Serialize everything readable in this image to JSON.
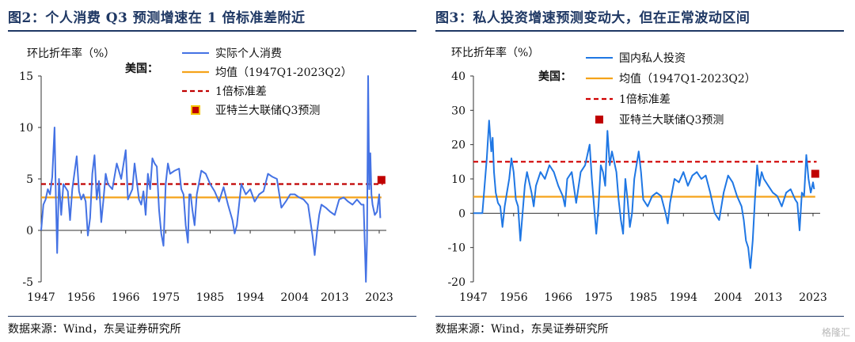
{
  "watermark": "格隆汇",
  "chart_data": [
    {
      "type": "line",
      "title": "图2：个人消费 Q3 预测增速在 1 倍标准差附近",
      "source": "数据来源：Wind，东吴证券研究所",
      "ylabel": "环比折年率（%）",
      "region_label": "美国：",
      "ylim": [
        -5,
        15
      ],
      "yticks": [
        -5,
        0,
        5,
        10,
        15
      ],
      "xlim": [
        1947,
        2024.6
      ],
      "xticks": [
        1947,
        1956,
        1966,
        1975,
        1985,
        1994,
        2004,
        2013,
        2023
      ],
      "grid": false,
      "legend_position": "top-right",
      "colors": {
        "series": "#4472e4",
        "mean": "#f5a31a",
        "std": "#c00000",
        "forecast": "#c00000"
      },
      "legend": {
        "series": "实际个人消费",
        "mean": "均值（1947Q1-2023Q2）",
        "std": "1倍标准差",
        "forecast": "亚特兰大联储Q3预测"
      },
      "mean_value": 3.2,
      "std_value": 4.5,
      "forecast": {
        "x": 2023.5,
        "y": 4.9
      },
      "series": [
        {
          "x": [
            1947,
            1947.5,
            1948,
            1948.5,
            1949,
            1949.5,
            1950,
            1950.3,
            1950.6,
            1951,
            1951.5,
            1952,
            1953,
            1953.5,
            1954,
            1955,
            1955.5,
            1956,
            1956.5,
            1957,
            1957.5,
            1958,
            1958.5,
            1959,
            1959.5,
            1960,
            1960.5,
            1961,
            1961.5,
            1962,
            1963,
            1964,
            1965,
            1966,
            1966.5,
            1967,
            1967.5,
            1968,
            1969,
            1969.5,
            1970,
            1970.5,
            1971,
            1971.5,
            1972,
            1972.5,
            1973,
            1973.5,
            1974,
            1974.5,
            1975,
            1975.5,
            1976,
            1977,
            1978,
            1978.5,
            1979,
            1979.5,
            1980,
            1980.3,
            1980.6,
            1981,
            1981.5,
            1982,
            1983,
            1984,
            1985,
            1986,
            1987,
            1988,
            1989,
            1990,
            1990.5,
            1991,
            1992,
            1993,
            1994,
            1995,
            1996,
            1997,
            1998,
            1999,
            2000,
            2001,
            2002,
            2003,
            2004,
            2005,
            2006,
            2007,
            2008,
            2008.5,
            2009,
            2009.5,
            2010,
            2011,
            2012,
            2013,
            2014,
            2015,
            2016,
            2017,
            2018,
            2019,
            2019.5,
            2020,
            2020.25,
            2020.5,
            2020.75,
            2021,
            2021.25,
            2021.5,
            2022,
            2022.5,
            2023,
            2023.25
          ],
          "y": [
            0.0,
            2.5,
            3.0,
            4.0,
            3.5,
            5.2,
            10.0,
            3.5,
            -2.2,
            5.0,
            1.5,
            4.5,
            3.8,
            1.0,
            4.0,
            7.2,
            3.8,
            3.0,
            3.5,
            2.8,
            -0.5,
            1.2,
            5.5,
            7.3,
            3.0,
            4.8,
            0.8,
            3.0,
            5.5,
            4.5,
            4.0,
            6.5,
            5.0,
            7.8,
            3.0,
            3.5,
            4.0,
            6.5,
            3.0,
            2.5,
            3.8,
            1.5,
            5.5,
            4.0,
            7.0,
            6.5,
            6.2,
            2.0,
            -0.3,
            -1.5,
            4.5,
            6.5,
            5.5,
            5.8,
            6.0,
            4.0,
            3.5,
            0.5,
            -1.2,
            3.5,
            3.5,
            2.0,
            0.5,
            3.5,
            5.8,
            5.5,
            4.5,
            3.8,
            2.8,
            4.2,
            2.5,
            1.0,
            -0.3,
            0.5,
            4.5,
            3.5,
            4.0,
            2.8,
            3.5,
            3.8,
            5.5,
            5.2,
            5.0,
            2.2,
            2.8,
            3.5,
            3.5,
            3.2,
            3.0,
            2.5,
            -0.5,
            -2.4,
            -0.2,
            1.5,
            2.5,
            2.2,
            1.8,
            1.5,
            3.0,
            3.2,
            2.8,
            2.5,
            3.0,
            2.5,
            2.5,
            -5.0,
            -1.0,
            15.0,
            4.0,
            7.5,
            3.5,
            2.5,
            1.5,
            1.8,
            3.5,
            1.2
          ]
        }
      ]
    },
    {
      "type": "line",
      "title": "图3：私人投资增速预测变动大，但在正常波动区间",
      "source": "数据来源：Wind，东吴证券研究所",
      "ylabel": "环比折年率（%）",
      "region_label": "美国：",
      "ylim": [
        -20,
        40
      ],
      "yticks": [
        -20,
        -10,
        0,
        10,
        20,
        30,
        40
      ],
      "xlim": [
        1947,
        2024.6
      ],
      "xticks": [
        1947,
        1956,
        1966,
        1975,
        1985,
        1994,
        2004,
        2013,
        2023
      ],
      "grid": false,
      "legend_position": "top-right",
      "colors": {
        "series": "#1f77e4",
        "mean": "#f5a31a",
        "std": "#d00000",
        "forecast": "#c00000"
      },
      "legend": {
        "series": "国内私人投资",
        "mean": "均值（1947Q1-2023Q2）",
        "std": "1倍标准差",
        "forecast": "亚特兰大联储Q3预测"
      },
      "mean_value": 4.8,
      "std_value": 15.0,
      "forecast": {
        "x": 2023.5,
        "y": 11.5
      },
      "series": [
        {
          "x": [
            1947,
            1948,
            1949,
            1949.5,
            1950,
            1950.5,
            1951,
            1951.3,
            1951.6,
            1952,
            1952.5,
            1953,
            1953.5,
            1954,
            1954.5,
            1955,
            1955.5,
            1956,
            1956.5,
            1957,
            1957.5,
            1958,
            1958.5,
            1959,
            1960,
            1960.5,
            1961,
            1962,
            1963,
            1964,
            1965,
            1966,
            1967,
            1967.5,
            1968,
            1969,
            1970,
            1971,
            1972,
            1973,
            1973.5,
            1974,
            1974.5,
            1975,
            1975.5,
            1976,
            1976.5,
            1977,
            1977.5,
            1978,
            1979,
            1979.5,
            1980,
            1980.5,
            1981,
            1981.5,
            1982,
            1982.5,
            1983,
            1984,
            1984.5,
            1985,
            1986,
            1987,
            1988,
            1989,
            1990,
            1990.5,
            1991,
            1992,
            1993,
            1994,
            1995,
            1996,
            1997,
            1998,
            1999,
            2000,
            2001,
            2002,
            2003,
            2004,
            2005,
            2006,
            2007,
            2007.5,
            2008,
            2008.5,
            2009,
            2009.5,
            2010,
            2010.5,
            2011,
            2011.5,
            2012,
            2013,
            2014,
            2015,
            2016,
            2017,
            2018,
            2019,
            2019.5,
            2020,
            2020.5,
            2021,
            2021.5,
            2022,
            2022.5,
            2023,
            2023.25
          ],
          "y": [
            0.0,
            0.0,
            0.0,
            8.0,
            16.0,
            27.0,
            18.0,
            22.0,
            12.0,
            6.0,
            3.0,
            2.0,
            -4.0,
            2.0,
            6.0,
            10.0,
            16.0,
            12.0,
            4.0,
            2.0,
            -8.0,
            0.0,
            8.0,
            12.0,
            6.0,
            2.0,
            8.0,
            12.0,
            10.0,
            14.0,
            12.0,
            8.0,
            5.0,
            2.0,
            10.0,
            12.0,
            3.0,
            12.0,
            14.0,
            20.0,
            10.0,
            2.0,
            -6.0,
            2.0,
            14.0,
            12.0,
            8.0,
            24.0,
            14.0,
            18.0,
            12.0,
            4.0,
            -2.0,
            -6.0,
            10.0,
            4.0,
            -4.0,
            0.0,
            10.0,
            18.0,
            12.0,
            4.0,
            2.0,
            5.0,
            6.0,
            5.0,
            0.0,
            -3.0,
            3.0,
            10.0,
            9.0,
            12.0,
            8.0,
            11.0,
            12.0,
            10.0,
            11.0,
            6.0,
            0.0,
            -2.0,
            6.0,
            11.0,
            9.0,
            5.0,
            2.0,
            -2.0,
            -8.0,
            -10.0,
            -16.0,
            -8.0,
            4.0,
            14.0,
            8.0,
            12.0,
            10.0,
            8.0,
            6.0,
            5.0,
            2.0,
            6.0,
            7.0,
            4.0,
            3.0,
            -5.0,
            6.0,
            5.0,
            17.0,
            10.0,
            6.0,
            9.0,
            7.0
          ]
        }
      ]
    }
  ]
}
